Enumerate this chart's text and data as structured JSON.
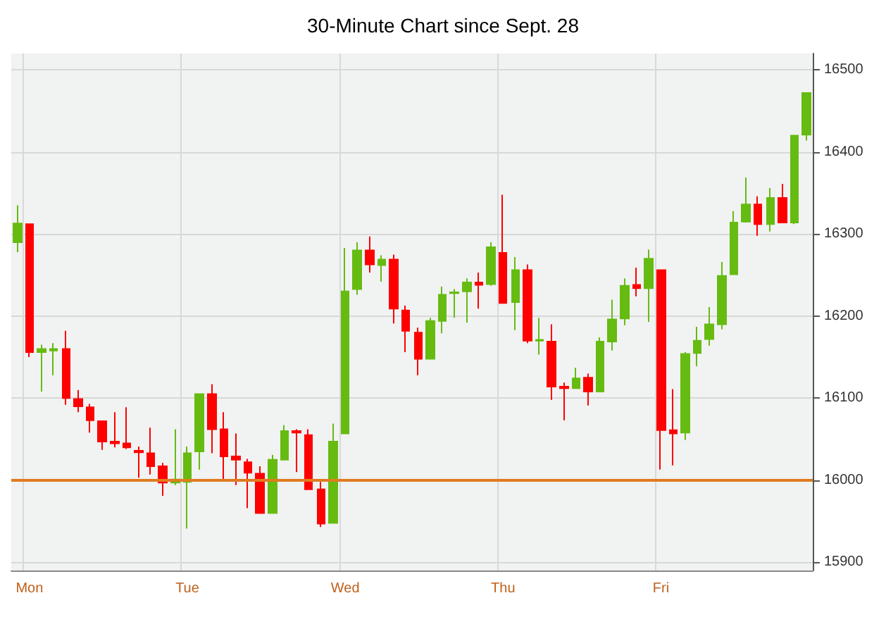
{
  "chart_data": {
    "type": "candlestick",
    "title": "30-Minute Chart since Sept. 28",
    "categories": [
      null,
      "Mon",
      null,
      null,
      null,
      null,
      null,
      null,
      null,
      null,
      null,
      null,
      null,
      null,
      "Tue",
      null,
      null,
      null,
      null,
      null,
      null,
      null,
      null,
      null,
      null,
      null,
      null,
      "Wed",
      null,
      null,
      null,
      null,
      null,
      null,
      null,
      null,
      null,
      null,
      null,
      null,
      "Thu",
      null,
      null,
      null,
      null,
      null,
      null,
      null,
      null,
      null,
      null,
      null,
      null,
      "Fri",
      null,
      null,
      null,
      null,
      null,
      null,
      null,
      null,
      null,
      null,
      null,
      null
    ],
    "ohlc": [
      [
        16290,
        16335,
        16278,
        16313
      ],
      [
        16312,
        16312,
        16150,
        16156
      ],
      [
        16156,
        16165,
        16108,
        16160
      ],
      [
        16158,
        16167,
        16128,
        16160
      ],
      [
        16160,
        16182,
        16092,
        16100
      ],
      [
        16099,
        16110,
        16083,
        16090
      ],
      [
        16089,
        16093,
        16058,
        16073
      ],
      [
        16072,
        16072,
        16037,
        16047
      ],
      [
        16047,
        16083,
        16040,
        16045
      ],
      [
        16045,
        16089,
        16038,
        16040
      ],
      [
        16036,
        16041,
        16003,
        16034
      ],
      [
        16033,
        16064,
        16007,
        16017
      ],
      [
        16017,
        16021,
        15981,
        15997
      ],
      [
        15997,
        16062,
        15994,
        16001
      ],
      [
        15998,
        16041,
        15941,
        16033
      ],
      [
        16035,
        16105,
        16013,
        16105
      ],
      [
        16105,
        16117,
        16033,
        16062
      ],
      [
        16062,
        16083,
        16001,
        16029
      ],
      [
        16029,
        16057,
        15994,
        16025
      ],
      [
        16022,
        16026,
        15966,
        16009
      ],
      [
        16008,
        16017,
        15960,
        15960
      ],
      [
        15960,
        16031,
        15960,
        16025
      ],
      [
        16025,
        16067,
        16025,
        16060
      ],
      [
        16060,
        16062,
        16010,
        16058
      ],
      [
        16055,
        16062,
        15989,
        15989
      ],
      [
        15989,
        15998,
        15943,
        15947
      ],
      [
        15948,
        16069,
        15948,
        16047
      ],
      [
        16057,
        16283,
        16057,
        16230
      ],
      [
        16233,
        16290,
        16226,
        16280
      ],
      [
        16280,
        16297,
        16253,
        16263
      ],
      [
        16262,
        16274,
        16242,
        16269
      ],
      [
        16269,
        16275,
        16191,
        16209
      ],
      [
        16207,
        16213,
        16156,
        16182
      ],
      [
        16180,
        16186,
        16128,
        16148
      ],
      [
        16148,
        16198,
        16148,
        16194
      ],
      [
        16194,
        16236,
        16179,
        16226
      ],
      [
        16228,
        16233,
        16198,
        16229
      ],
      [
        16230,
        16246,
        16192,
        16241
      ],
      [
        16241,
        16253,
        16209,
        16238
      ],
      [
        16239,
        16290,
        16237,
        16284
      ],
      [
        16277,
        16348,
        16216,
        16216
      ],
      [
        16217,
        16272,
        16183,
        16256
      ],
      [
        16256,
        16263,
        16167,
        16170
      ],
      [
        16170,
        16198,
        16153,
        16171
      ],
      [
        16169,
        16190,
        16098,
        16114
      ],
      [
        16114,
        16119,
        16073,
        16112
      ],
      [
        16112,
        16137,
        16112,
        16124
      ],
      [
        16125,
        16130,
        16091,
        16108
      ],
      [
        16108,
        16174,
        16108,
        16169
      ],
      [
        16169,
        16220,
        16158,
        16196
      ],
      [
        16197,
        16246,
        16189,
        16237
      ],
      [
        16238,
        16259,
        16224,
        16234
      ],
      [
        16234,
        16281,
        16193,
        16270
      ],
      [
        16256,
        16256,
        16013,
        16061
      ],
      [
        16061,
        16111,
        16018,
        16057
      ],
      [
        16058,
        16156,
        16049,
        16154
      ],
      [
        16155,
        16187,
        16139,
        16170
      ],
      [
        16172,
        16211,
        16164,
        16190
      ],
      [
        16190,
        16266,
        16184,
        16249
      ],
      [
        16251,
        16328,
        16251,
        16314
      ],
      [
        16315,
        16369,
        16314,
        16336
      ],
      [
        16336,
        16346,
        16298,
        16312
      ],
      [
        16312,
        16356,
        16303,
        16344
      ],
      [
        16344,
        16361,
        16314,
        16314
      ],
      [
        16314,
        16420,
        16312,
        16420
      ],
      [
        16421,
        16472,
        16414,
        16472
      ]
    ],
    "colors": [
      "#66bb11",
      "#ff0000",
      "#66bb11",
      "#66bb11",
      "#ff0000",
      "#ff0000",
      "#ff0000",
      "#ff0000",
      "#ff0000",
      "#ff0000",
      "#ff0000",
      "#ff0000",
      "#ff0000",
      "#66bb11",
      "#66bb11",
      "#66bb11",
      "#ff0000",
      "#ff0000",
      "#ff0000",
      "#ff0000",
      "#ff0000",
      "#66bb11",
      "#66bb11",
      "#ff0000",
      "#ff0000",
      "#ff0000",
      "#66bb11",
      "#66bb11",
      "#66bb11",
      "#ff0000",
      "#66bb11",
      "#ff0000",
      "#ff0000",
      "#ff0000",
      "#66bb11",
      "#66bb11",
      "#66bb11",
      "#66bb11",
      "#ff0000",
      "#66bb11",
      "#ff0000",
      "#66bb11",
      "#ff0000",
      "#66bb11",
      "#ff0000",
      "#ff0000",
      "#66bb11",
      "#ff0000",
      "#66bb11",
      "#66bb11",
      "#66bb11",
      "#ff0000",
      "#66bb11",
      "#ff0000",
      "#ff0000",
      "#66bb11",
      "#66bb11",
      "#66bb11",
      "#66bb11",
      "#66bb11",
      "#66bb11",
      "#ff0000",
      "#66bb11",
      "#ff0000",
      "#66bb11",
      "#66bb11"
    ],
    "ylim": [
      15890,
      16520
    ],
    "yticks": [
      15900,
      16000,
      16100,
      16200,
      16300,
      16400,
      16500
    ],
    "ref_lines": [
      {
        "axis": "y",
        "value": 16000,
        "color": "#e07b20"
      }
    ],
    "grid": true
  }
}
